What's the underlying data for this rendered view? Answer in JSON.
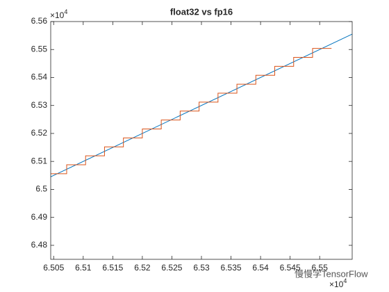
{
  "chart_data": {
    "type": "line",
    "title": "float32 vs fp16",
    "series": [
      {
        "color": "#0072bd",
        "x": [
          65045,
          65555
        ],
        "values": [
          65045,
          65555
        ]
      },
      {
        "color": "#d95319",
        "x": [
          65045,
          65072,
          65072,
          65104,
          65104,
          65136,
          65136,
          65168,
          65168,
          65200,
          65200,
          65232,
          65232,
          65264,
          65264,
          65296,
          65296,
          65328,
          65328,
          65360,
          65360,
          65392,
          65392,
          65424,
          65424,
          65456,
          65456,
          65488,
          65488,
          65520
        ],
        "values": [
          65056,
          65056,
          65088,
          65088,
          65120,
          65120,
          65152,
          65152,
          65184,
          65184,
          65216,
          65216,
          65248,
          65248,
          65280,
          65280,
          65312,
          65312,
          65344,
          65344,
          65376,
          65376,
          65408,
          65408,
          65440,
          65440,
          65472,
          65472,
          65504,
          65504
        ]
      }
    ],
    "xlim": [
      65045,
      65555
    ],
    "ylim": [
      64750,
      65600
    ],
    "xticks": [
      {
        "value": 65050,
        "label": "6.505"
      },
      {
        "value": 65100,
        "label": "6.51"
      },
      {
        "value": 65150,
        "label": "6.515"
      },
      {
        "value": 65200,
        "label": "6.52"
      },
      {
        "value": 65250,
        "label": "6.525"
      },
      {
        "value": 65300,
        "label": "6.53"
      },
      {
        "value": 65350,
        "label": "6.535"
      },
      {
        "value": 65400,
        "label": "6.54"
      },
      {
        "value": 65450,
        "label": "6.545"
      },
      {
        "value": 65500,
        "label": "6.55"
      }
    ],
    "yticks": [
      {
        "value": 64800,
        "label": "6.48"
      },
      {
        "value": 64900,
        "label": "6.49"
      },
      {
        "value": 65000,
        "label": "6.5"
      },
      {
        "value": 65100,
        "label": "6.51"
      },
      {
        "value": 65200,
        "label": "6.52"
      },
      {
        "value": 65300,
        "label": "6.53"
      },
      {
        "value": 65400,
        "label": "6.54"
      },
      {
        "value": 65500,
        "label": "6.55"
      },
      {
        "value": 65600,
        "label": "6.56"
      }
    ],
    "x_multiplier": {
      "base": "×10",
      "power": "4"
    },
    "y_multiplier": {
      "base": "×10",
      "power": "4"
    }
  },
  "watermark": "慢慢学TensorFlow"
}
